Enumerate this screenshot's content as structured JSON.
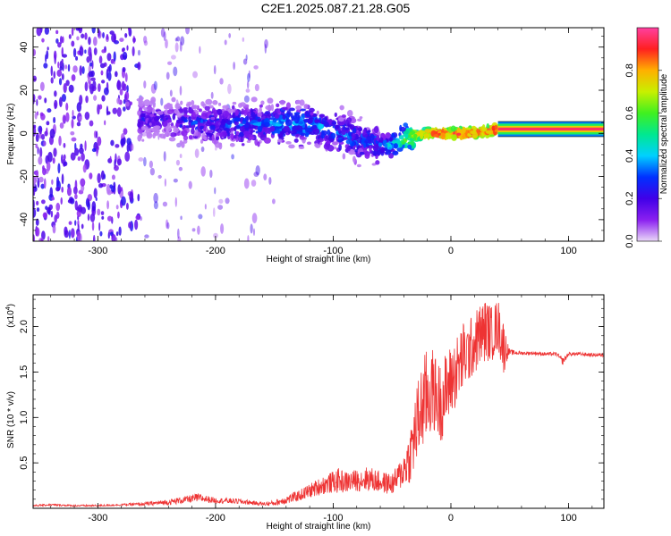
{
  "page": {
    "title": "C2E1.2025.087.21.28.G05"
  },
  "chart_data": [
    {
      "type": "heatmap",
      "title": "C2E1.2025.087.21.28.G05",
      "xlabel": "Height of straight line (km)",
      "ylabel": "Frequency (Hz)",
      "xlim": [
        -355,
        130
      ],
      "ylim": [
        -50,
        49
      ],
      "x_ticks": [
        -300,
        -200,
        -100,
        0,
        100
      ],
      "x_tick_labels": [
        "-300",
        "-200",
        "-100",
        "0",
        "100"
      ],
      "y_ticks": [
        -40,
        -20,
        0,
        20,
        40
      ],
      "y_tick_labels": [
        "-40",
        "-20",
        "0",
        "20",
        "40"
      ],
      "colorbar": {
        "label": "Normalized spectral amplitude",
        "range": [
          0,
          1
        ],
        "ticks": [
          0.0,
          0.2,
          0.4,
          0.6,
          0.8
        ],
        "tick_labels": [
          "0.0",
          "0.2",
          "0.4",
          "0.6",
          "0.8"
        ],
        "colors": [
          "#ead8f8",
          "#8a20f0",
          "#4000e8",
          "#0030ff",
          "#00d0ff",
          "#00e890",
          "#40f020",
          "#c8f000",
          "#ffb000",
          "#ff2020",
          "#ff40a0"
        ]
      },
      "ridge": {
        "x": [
          -265,
          -240,
          -220,
          -200,
          -180,
          -160,
          -140,
          -120,
          -100,
          -90,
          -80,
          -70,
          -60,
          -50,
          -40,
          -30,
          -20,
          -10,
          0,
          10,
          20,
          30,
          40,
          60,
          80,
          100,
          130
        ],
        "frequency": [
          7,
          6,
          5,
          4,
          4,
          4,
          5,
          4,
          1,
          -1,
          -3,
          -4,
          -6,
          -5,
          -3,
          -1,
          0,
          0,
          0,
          0,
          0,
          1,
          2,
          2,
          2,
          2,
          2
        ],
        "amplitude": [
          0.2,
          0.2,
          0.25,
          0.25,
          0.3,
          0.3,
          0.35,
          0.35,
          0.3,
          0.3,
          0.3,
          0.3,
          0.3,
          0.4,
          0.55,
          0.7,
          0.85,
          0.9,
          0.9,
          0.9,
          0.9,
          0.9,
          0.95,
          0.95,
          0.95,
          0.95,
          0.95
        ]
      }
    },
    {
      "type": "line",
      "xlabel": "Height of straight line (km)",
      "ylabel": "SNR (10 * v/v)",
      "y_multiplier_label": "(x10",
      "y_multiplier_exponent": "4",
      "y_multiplier_close": ")",
      "xlim": [
        -355,
        130
      ],
      "ylim": [
        0,
        2.35
      ],
      "x_ticks": [
        -300,
        -200,
        -100,
        0,
        100
      ],
      "x_tick_labels": [
        "-300",
        "-200",
        "-100",
        "0",
        "100"
      ],
      "y_ticks": [
        0.5,
        1.0,
        1.5,
        2.0
      ],
      "y_tick_labels": [
        "0.5",
        "1.0",
        "1.5",
        "2.0"
      ],
      "color": "#ee3333",
      "series": [
        {
          "x": [
            -355,
            -340,
            -320,
            -300,
            -280,
            -260,
            -240,
            -225,
            -215,
            -200,
            -180,
            -160,
            -150,
            -140,
            -130,
            -120,
            -110,
            -100,
            -95,
            -90,
            -80,
            -70,
            -60,
            -50,
            -45,
            -40,
            -35,
            -30,
            -25,
            -20,
            -15,
            -10,
            -5,
            0,
            5,
            10,
            15,
            20,
            25,
            30,
            35,
            40,
            45,
            48,
            50,
            60,
            70,
            80,
            90,
            95,
            100,
            110,
            120,
            130
          ],
          "y": [
            0.03,
            0.04,
            0.03,
            0.03,
            0.04,
            0.05,
            0.07,
            0.1,
            0.12,
            0.09,
            0.08,
            0.05,
            0.06,
            0.1,
            0.14,
            0.2,
            0.26,
            0.3,
            0.32,
            0.3,
            0.32,
            0.34,
            0.3,
            0.28,
            0.35,
            0.45,
            0.6,
            0.9,
            1.15,
            1.3,
            1.35,
            1.2,
            1.3,
            1.45,
            1.55,
            1.7,
            1.75,
            1.85,
            1.95,
            2.0,
            1.95,
            2.05,
            1.8,
            1.75,
            1.72,
            1.71,
            1.71,
            1.7,
            1.7,
            1.62,
            1.7,
            1.7,
            1.69,
            1.69
          ],
          "noise": [
            0.01,
            0.01,
            0.01,
            0.01,
            0.01,
            0.02,
            0.03,
            0.04,
            0.05,
            0.03,
            0.03,
            0.02,
            0.03,
            0.05,
            0.06,
            0.08,
            0.1,
            0.12,
            0.14,
            0.12,
            0.12,
            0.14,
            0.12,
            0.12,
            0.15,
            0.2,
            0.3,
            0.45,
            0.5,
            0.55,
            0.45,
            0.45,
            0.45,
            0.4,
            0.4,
            0.4,
            0.35,
            0.35,
            0.35,
            0.35,
            0.3,
            0.3,
            0.3,
            0.1,
            0.03,
            0.02,
            0.02,
            0.02,
            0.02,
            0.04,
            0.02,
            0.02,
            0.02,
            0.02
          ]
        }
      ]
    }
  ]
}
